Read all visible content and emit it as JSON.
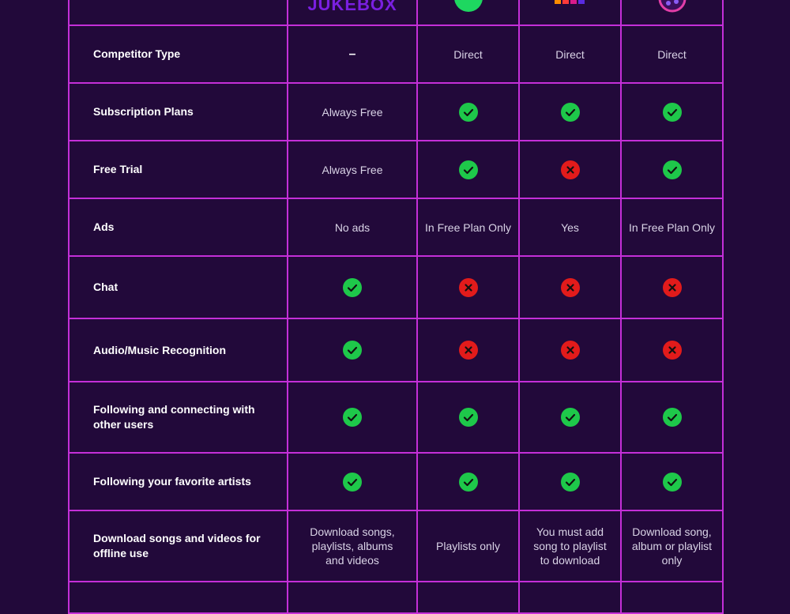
{
  "colors": {
    "background": "#22093a",
    "grid_line": "#c42fd8",
    "check_green": "#1ec84a",
    "cross_red": "#e21b1b",
    "label_text": "#ffffff",
    "cell_text": "#d9d3e6"
  },
  "header": {
    "logos": [
      {
        "name": "jukebox-logo",
        "text": "JUKEBOX"
      },
      {
        "name": "spotify-logo-icon"
      },
      {
        "name": "deezer-logo-icon"
      },
      {
        "name": "apple-music-logo-icon"
      }
    ]
  },
  "rows": [
    {
      "label": "Competitor Type",
      "cells": [
        {
          "type": "text",
          "value": "–"
        },
        {
          "type": "text",
          "value": "Direct"
        },
        {
          "type": "text",
          "value": "Direct"
        },
        {
          "type": "text",
          "value": "Direct"
        }
      ]
    },
    {
      "label": "Subscription Plans",
      "cells": [
        {
          "type": "text",
          "value": "Always Free"
        },
        {
          "type": "check"
        },
        {
          "type": "check"
        },
        {
          "type": "check"
        }
      ]
    },
    {
      "label": "Free Trial",
      "cells": [
        {
          "type": "text",
          "value": "Always Free"
        },
        {
          "type": "check"
        },
        {
          "type": "cross"
        },
        {
          "type": "check"
        }
      ]
    },
    {
      "label": "Ads",
      "cells": [
        {
          "type": "text",
          "value": "No ads"
        },
        {
          "type": "text",
          "value": "In Free Plan Only"
        },
        {
          "type": "text",
          "value": "Yes"
        },
        {
          "type": "text",
          "value": "In Free Plan Only"
        }
      ]
    },
    {
      "label": "Chat",
      "cells": [
        {
          "type": "check"
        },
        {
          "type": "cross"
        },
        {
          "type": "cross"
        },
        {
          "type": "cross"
        }
      ]
    },
    {
      "label": "Audio/Music Recognition",
      "cells": [
        {
          "type": "check"
        },
        {
          "type": "cross"
        },
        {
          "type": "cross"
        },
        {
          "type": "cross"
        }
      ]
    },
    {
      "label": "Following and connecting with other users",
      "cells": [
        {
          "type": "check"
        },
        {
          "type": "check"
        },
        {
          "type": "check"
        },
        {
          "type": "check"
        }
      ]
    },
    {
      "label": "Following your favorite artists",
      "cells": [
        {
          "type": "check"
        },
        {
          "type": "check"
        },
        {
          "type": "check"
        },
        {
          "type": "check"
        }
      ]
    },
    {
      "label": "Download songs and videos for offline use",
      "cells": [
        {
          "type": "text",
          "value": "Download songs, playlists, albums and videos"
        },
        {
          "type": "text",
          "value": "Playlists only"
        },
        {
          "type": "text",
          "value": "You must add song to playlist to download"
        },
        {
          "type": "text",
          "value": "Download song, album or playlist only"
        }
      ]
    },
    {
      "label": "",
      "cells": [
        {
          "type": "text",
          "value": ""
        },
        {
          "type": "text",
          "value": ""
        },
        {
          "type": "text",
          "value": ""
        },
        {
          "type": "text",
          "value": ""
        }
      ]
    }
  ]
}
